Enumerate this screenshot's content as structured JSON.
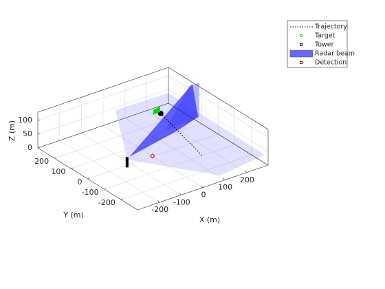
{
  "chart_data": {
    "type": "scatter3",
    "xlabel": "X (m)",
    "ylabel": "Y (m)",
    "zlabel": "Z (m)",
    "xlim": [
      -300,
      300
    ],
    "ylim": [
      -300,
      300
    ],
    "zlim": [
      0,
      130
    ],
    "xticks": [
      -200,
      -100,
      0,
      100,
      200
    ],
    "yticks": [
      -200,
      -100,
      0,
      100,
      200
    ],
    "zticks": [
      0,
      50,
      100
    ],
    "grid": true,
    "legend_location": "northeast",
    "series": [
      {
        "name": "Trajectory",
        "color": "#000000",
        "x": [
          150,
          150,
          150,
          150,
          150,
          150
        ],
        "y": [
          150,
          100,
          50,
          0,
          -50,
          -100
        ],
        "z": [
          60,
          48,
          36,
          24,
          12,
          0
        ]
      },
      {
        "name": "Target",
        "color": "#00dd00",
        "x": [
          150
        ],
        "y": [
          170
        ],
        "z": [
          70
        ]
      },
      {
        "name": "Tower",
        "color": "#000000",
        "x": [
          -100
        ],
        "y": [
          0
        ],
        "z": [
          0
        ]
      },
      {
        "name": "Radar beam",
        "color": "#3333ff"
      },
      {
        "name": "Detection",
        "color": "#aa0000",
        "x": [
          -25
        ],
        "y": [
          -30
        ],
        "z": [
          20
        ]
      }
    ]
  }
}
